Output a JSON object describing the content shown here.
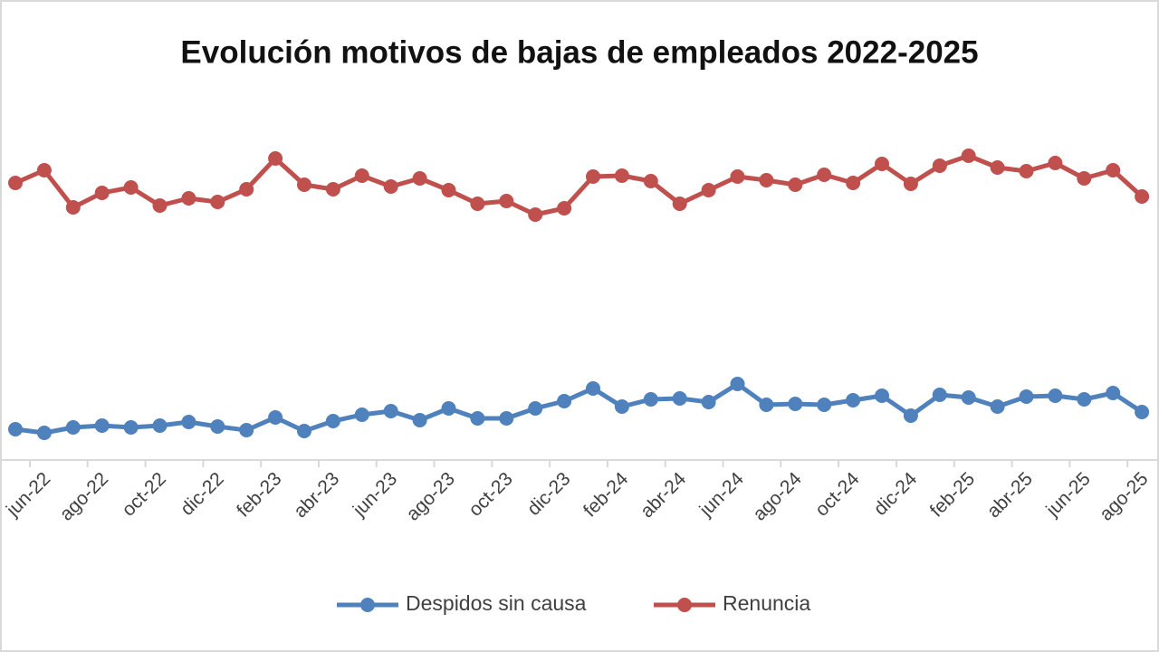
{
  "chart_data": {
    "type": "line",
    "title": "Evolución motivos de bajas de empleados 2022-2025",
    "categories": [
      null,
      "jun-22",
      null,
      "ago-22",
      null,
      "oct-22",
      null,
      "dic-22",
      null,
      "feb-23",
      null,
      "abr-23",
      null,
      "jun-23",
      null,
      "ago-23",
      null,
      "oct-23",
      null,
      "dic-23",
      null,
      "feb-24",
      null,
      "abr-24",
      null,
      "jun-24",
      null,
      "ago-24",
      null,
      "oct-24",
      null,
      "dic-24",
      null,
      "feb-25",
      null,
      "abr-25",
      null,
      "jun-25",
      null,
      "ago-25"
    ],
    "series": [
      {
        "name": "Despidos sin causa",
        "color": "#4f81bd",
        "values": [
          8.5,
          7.5,
          9,
          9.5,
          9,
          9.5,
          10.5,
          9.25,
          8.25,
          11.75,
          8,
          10.75,
          12.5,
          13.5,
          11,
          14.25,
          11.5,
          11.5,
          14.25,
          16.25,
          19.75,
          14.75,
          16.75,
          17,
          16,
          21,
          15.25,
          15.5,
          15.25,
          16.5,
          17.75,
          12.25,
          18,
          17.25,
          14.75,
          17.5,
          17.75,
          16.75,
          18.5,
          13.25
        ]
      },
      {
        "name": "Renuncia",
        "color": "#c0504d",
        "values": [
          76.5,
          80,
          69.75,
          73.75,
          75.25,
          70.25,
          72.25,
          71.25,
          74.75,
          83.25,
          76,
          74.75,
          78.5,
          75.5,
          77.75,
          74.5,
          70.75,
          71.5,
          67.75,
          69.5,
          78.25,
          78.5,
          77,
          70.75,
          74.5,
          78.25,
          77.25,
          76,
          78.75,
          76.5,
          81.75,
          76.25,
          81.25,
          84,
          80.75,
          79.75,
          82,
          77.75,
          80,
          72.75
        ]
      }
    ],
    "ylim": [
      0,
      100
    ]
  }
}
